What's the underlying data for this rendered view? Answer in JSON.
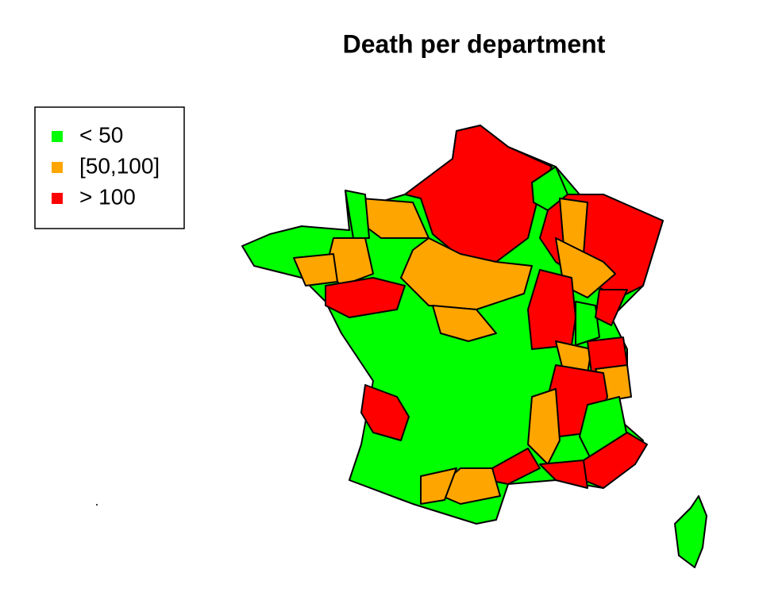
{
  "title": "Death per department",
  "legend": {
    "items": [
      {
        "label": "< 50",
        "color": "#00ff00"
      },
      {
        "label": "[50,100]",
        "color": "#ffa500"
      },
      {
        "label": "> 100",
        "color": "#ff0000"
      }
    ]
  }
}
